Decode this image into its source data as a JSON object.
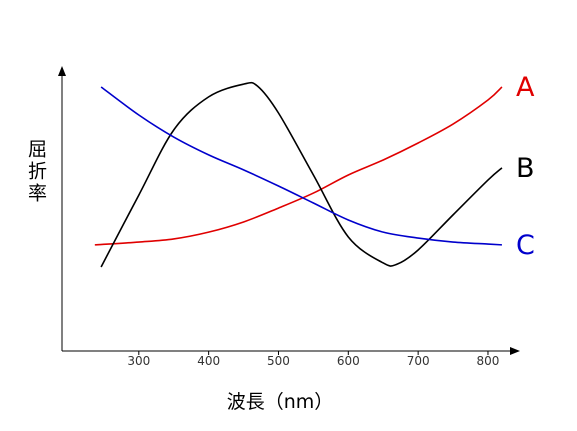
{
  "chart_data": {
    "type": "line",
    "xlabel": "波長（nm）",
    "ylabel": "屈折率",
    "xlim": [
      190,
      843
    ],
    "ylim": [
      0,
      100
    ],
    "xticks": [
      300,
      400,
      500,
      600,
      700,
      800
    ],
    "series": [
      {
        "name": "A",
        "color": "#e00000",
        "x": [
          237,
          300,
          350,
          400,
          450,
          500,
          550,
          600,
          650,
          700,
          750,
          800,
          820
        ],
        "values": [
          37.5,
          38.5,
          39.6,
          42,
          45.6,
          50.5,
          55.8,
          62.2,
          67.5,
          73.5,
          80.2,
          88.7,
          93.3
        ]
      },
      {
        "name": "B",
        "color": "#000000",
        "x": [
          246,
          300,
          350,
          400,
          450,
          470,
          500,
          550,
          600,
          650,
          670,
          700,
          750,
          800,
          820
        ],
        "values": [
          29.7,
          55.1,
          78.1,
          89.8,
          94.3,
          93.6,
          84.1,
          62.2,
          40.3,
          31.1,
          30.7,
          35.7,
          48.1,
          60.4,
          64.7
        ]
      },
      {
        "name": "C",
        "color": "#0000cc",
        "x": [
          246,
          300,
          350,
          400,
          450,
          500,
          550,
          600,
          650,
          700,
          750,
          800,
          820
        ],
        "values": [
          93.3,
          83.4,
          75.6,
          69.3,
          64,
          58.3,
          52.3,
          46.3,
          42,
          39.9,
          38.5,
          37.8,
          37.5
        ]
      }
    ]
  }
}
